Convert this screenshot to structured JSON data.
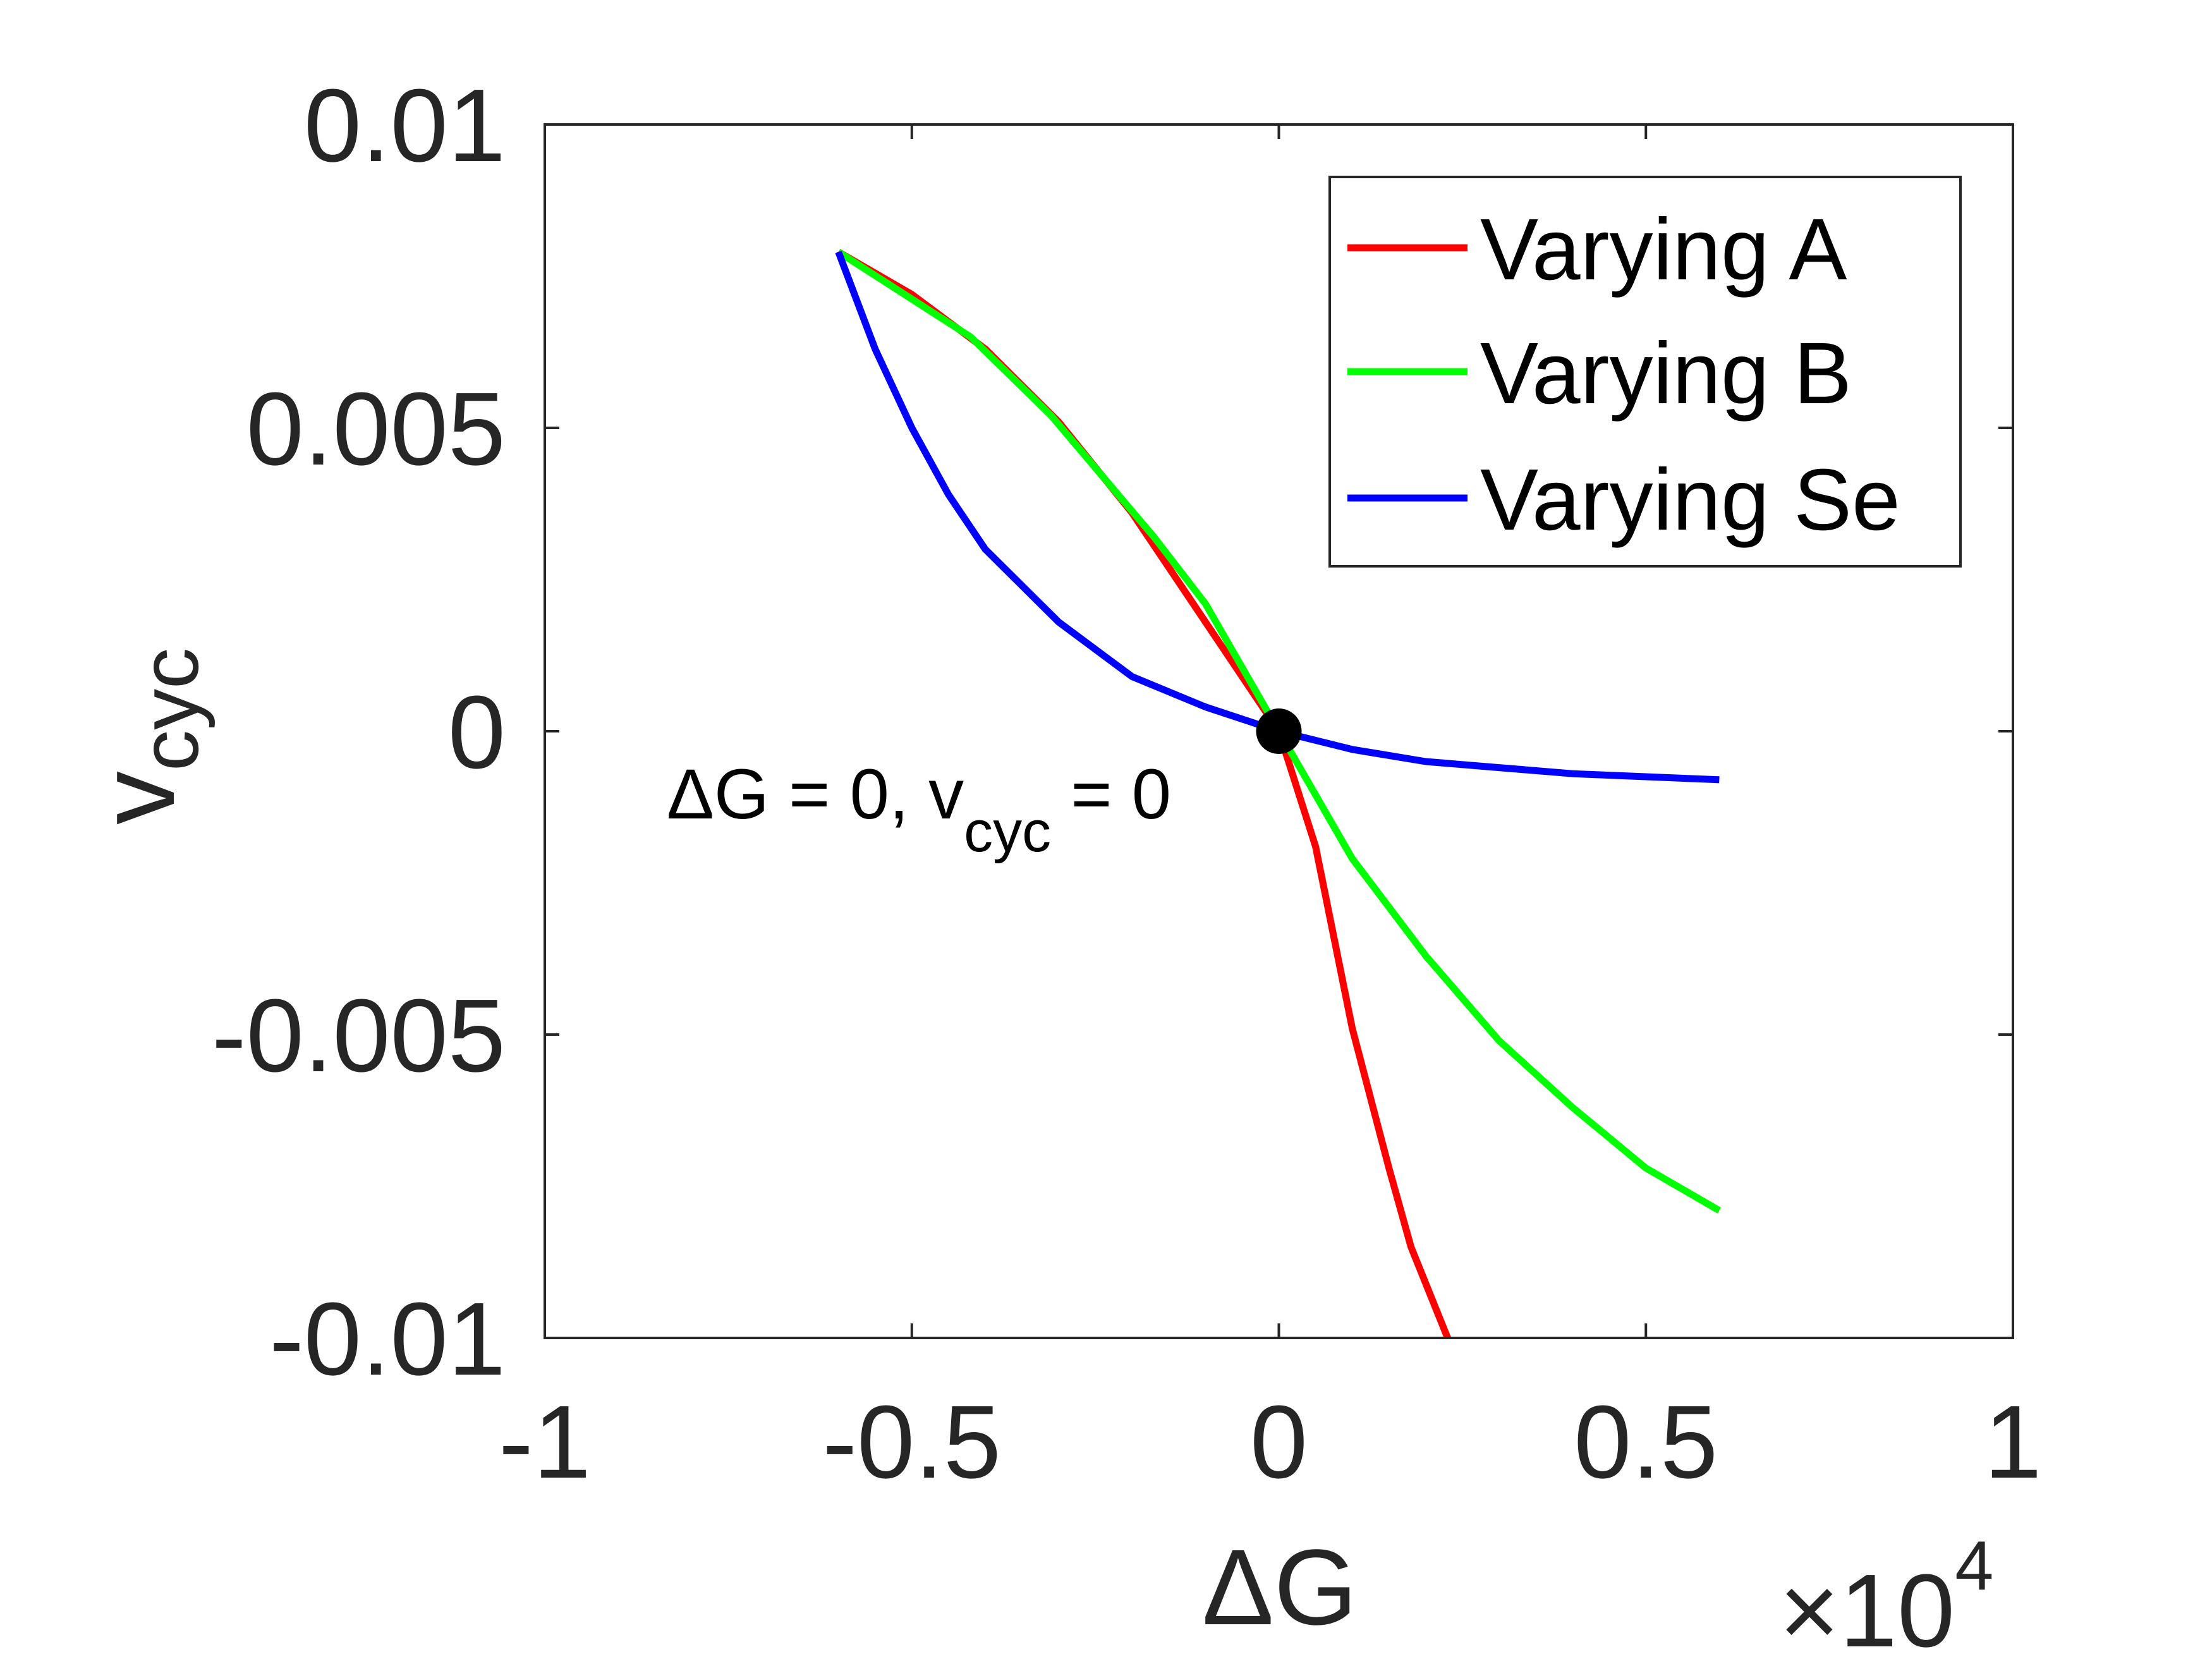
{
  "chart_data": {
    "type": "line",
    "xlabel": "ΔG",
    "ylabel_main": "v",
    "ylabel_sub": "cyc",
    "x_exponent_prefix": "×10",
    "x_exponent_power": "4",
    "x_multiplier": 10000,
    "xlim": [
      -1,
      1
    ],
    "ylim": [
      -0.01,
      0.01
    ],
    "xticks": [
      -1,
      -0.5,
      0,
      0.5,
      1
    ],
    "xtick_labels": [
      "-1",
      "-0.5",
      "0",
      "0.5",
      "1"
    ],
    "yticks": [
      0.01,
      0.005,
      0,
      -0.005,
      -0.01
    ],
    "ytick_labels": [
      "0.01",
      "0.005",
      "0",
      "-0.005",
      "-0.01"
    ],
    "grid": false,
    "legend_position": "top-right",
    "series": [
      {
        "name": "Varying A",
        "color": "#ff0000",
        "x": [
          -0.6,
          -0.5,
          -0.4,
          -0.3,
          -0.2,
          -0.1,
          -0.05,
          0,
          0.05,
          0.1,
          0.15,
          0.18,
          0.23
        ],
        "y": [
          0.0079,
          0.0072,
          0.0063,
          0.0051,
          0.0036,
          0.0018,
          0.0009,
          0,
          -0.0019,
          -0.0049,
          -0.0072,
          -0.0085,
          -0.01
        ]
      },
      {
        "name": "Varying B",
        "color": "#00ff00",
        "x": [
          -0.6,
          -0.42,
          -0.31,
          -0.24,
          -0.17,
          -0.1,
          0,
          0.1,
          0.2,
          0.3,
          0.4,
          0.5,
          0.6
        ],
        "y": [
          0.0079,
          0.0065,
          0.0052,
          0.0042,
          0.0032,
          0.0021,
          0,
          -0.0021,
          -0.0037,
          -0.0051,
          -0.0062,
          -0.0072,
          -0.0079
        ]
      },
      {
        "name": "Varying Se",
        "color": "#0000ff",
        "x": [
          -0.6,
          -0.55,
          -0.5,
          -0.45,
          -0.4,
          -0.3,
          -0.2,
          -0.1,
          0,
          0.1,
          0.2,
          0.3,
          0.4,
          0.5,
          0.6
        ],
        "y": [
          0.0079,
          0.0063,
          0.005,
          0.0039,
          0.003,
          0.0018,
          0.0009,
          0.0004,
          0,
          -0.0003,
          -0.0005,
          -0.0006,
          -0.0007,
          -0.00075,
          -0.0008
        ]
      }
    ],
    "marker": {
      "x": 0,
      "y": 0,
      "color": "#000000"
    },
    "annotation": {
      "text_prefix": "ΔG = 0, v",
      "text_sub": "cyc",
      "text_suffix": " = 0"
    }
  }
}
